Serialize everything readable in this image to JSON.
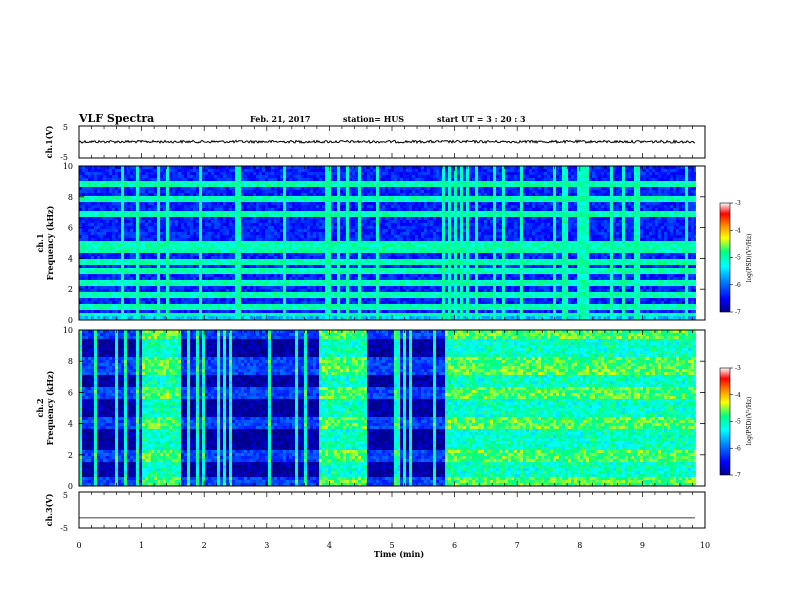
{
  "header": {
    "title": "VLF Spectra",
    "date": "Feb. 21, 2017",
    "station": "station= HUS",
    "start": "start  UT  =   3  : 20 : 3"
  },
  "colors": {
    "colormap": [
      "#00008c",
      "#0000ff",
      "#0080ff",
      "#00ffff",
      "#00ff80",
      "#ffff00",
      "#ff8000",
      "#ff0000",
      "#ffffff"
    ]
  },
  "chart_data": [
    {
      "type": "line",
      "panel": "ch1-waveform",
      "ylabel": "ch.1(V)",
      "ylim": [
        -5,
        5
      ],
      "yticks": [
        "5",
        "-5"
      ],
      "x_range": [
        0,
        9.85
      ],
      "y_level": 0.1
    },
    {
      "type": "heatmap",
      "panel": "ch1-spectrogram",
      "ylabel": "ch.1\nFrequency (kHz)",
      "ylim": [
        0,
        10
      ],
      "yticks": [
        "0",
        "2",
        "4",
        "6",
        "8",
        "10"
      ],
      "x_range": [
        0,
        9.85
      ],
      "colorbar": {
        "label": "log(PSD)(V²/Hz)",
        "ticks": [
          "-3",
          "-4",
          "-5",
          "-6",
          "-7"
        ],
        "range": [
          -7,
          -3
        ]
      },
      "horizontal_bands_kHz": [
        0.3,
        0.9,
        1.6,
        2.4,
        3.2,
        3.8,
        4.6,
        5.0,
        6.9,
        7.9,
        8.8
      ]
    },
    {
      "type": "heatmap",
      "panel": "ch2-spectrogram",
      "ylabel": "ch.2\nFrequency (kHz)",
      "ylim": [
        0,
        10
      ],
      "yticks": [
        "0",
        "2",
        "4",
        "6",
        "8",
        "10"
      ],
      "x_range": [
        0,
        9.85
      ],
      "colorbar": {
        "label": "log(PSD)(V²/Hz)",
        "ticks": [
          "-3",
          "-4",
          "-5",
          "-6",
          "-7"
        ],
        "range": [
          -7,
          -3
        ]
      },
      "dark_bands_kHz": [
        [
          0.6,
          1.6
        ],
        [
          2.4,
          3.6
        ],
        [
          4.4,
          5.6
        ],
        [
          6.4,
          7.2
        ],
        [
          8.2,
          9.4
        ]
      ],
      "active_intervals_min": [
        [
          1.0,
          1.6
        ],
        [
          3.8,
          4.6
        ],
        [
          5.8,
          9.85
        ]
      ]
    },
    {
      "type": "line",
      "panel": "ch3-waveform",
      "ylabel": "ch.3(V)",
      "ylim": [
        -5,
        5
      ],
      "yticks": [
        "5",
        "-5"
      ],
      "x_range": [
        0,
        9.85
      ],
      "y_level": -2.2
    }
  ],
  "xaxis": {
    "label": "Time (min)",
    "ticks": [
      "0",
      "1",
      "2",
      "3",
      "4",
      "5",
      "6",
      "7",
      "8",
      "9",
      "10"
    ],
    "xlim": [
      0,
      10
    ]
  }
}
